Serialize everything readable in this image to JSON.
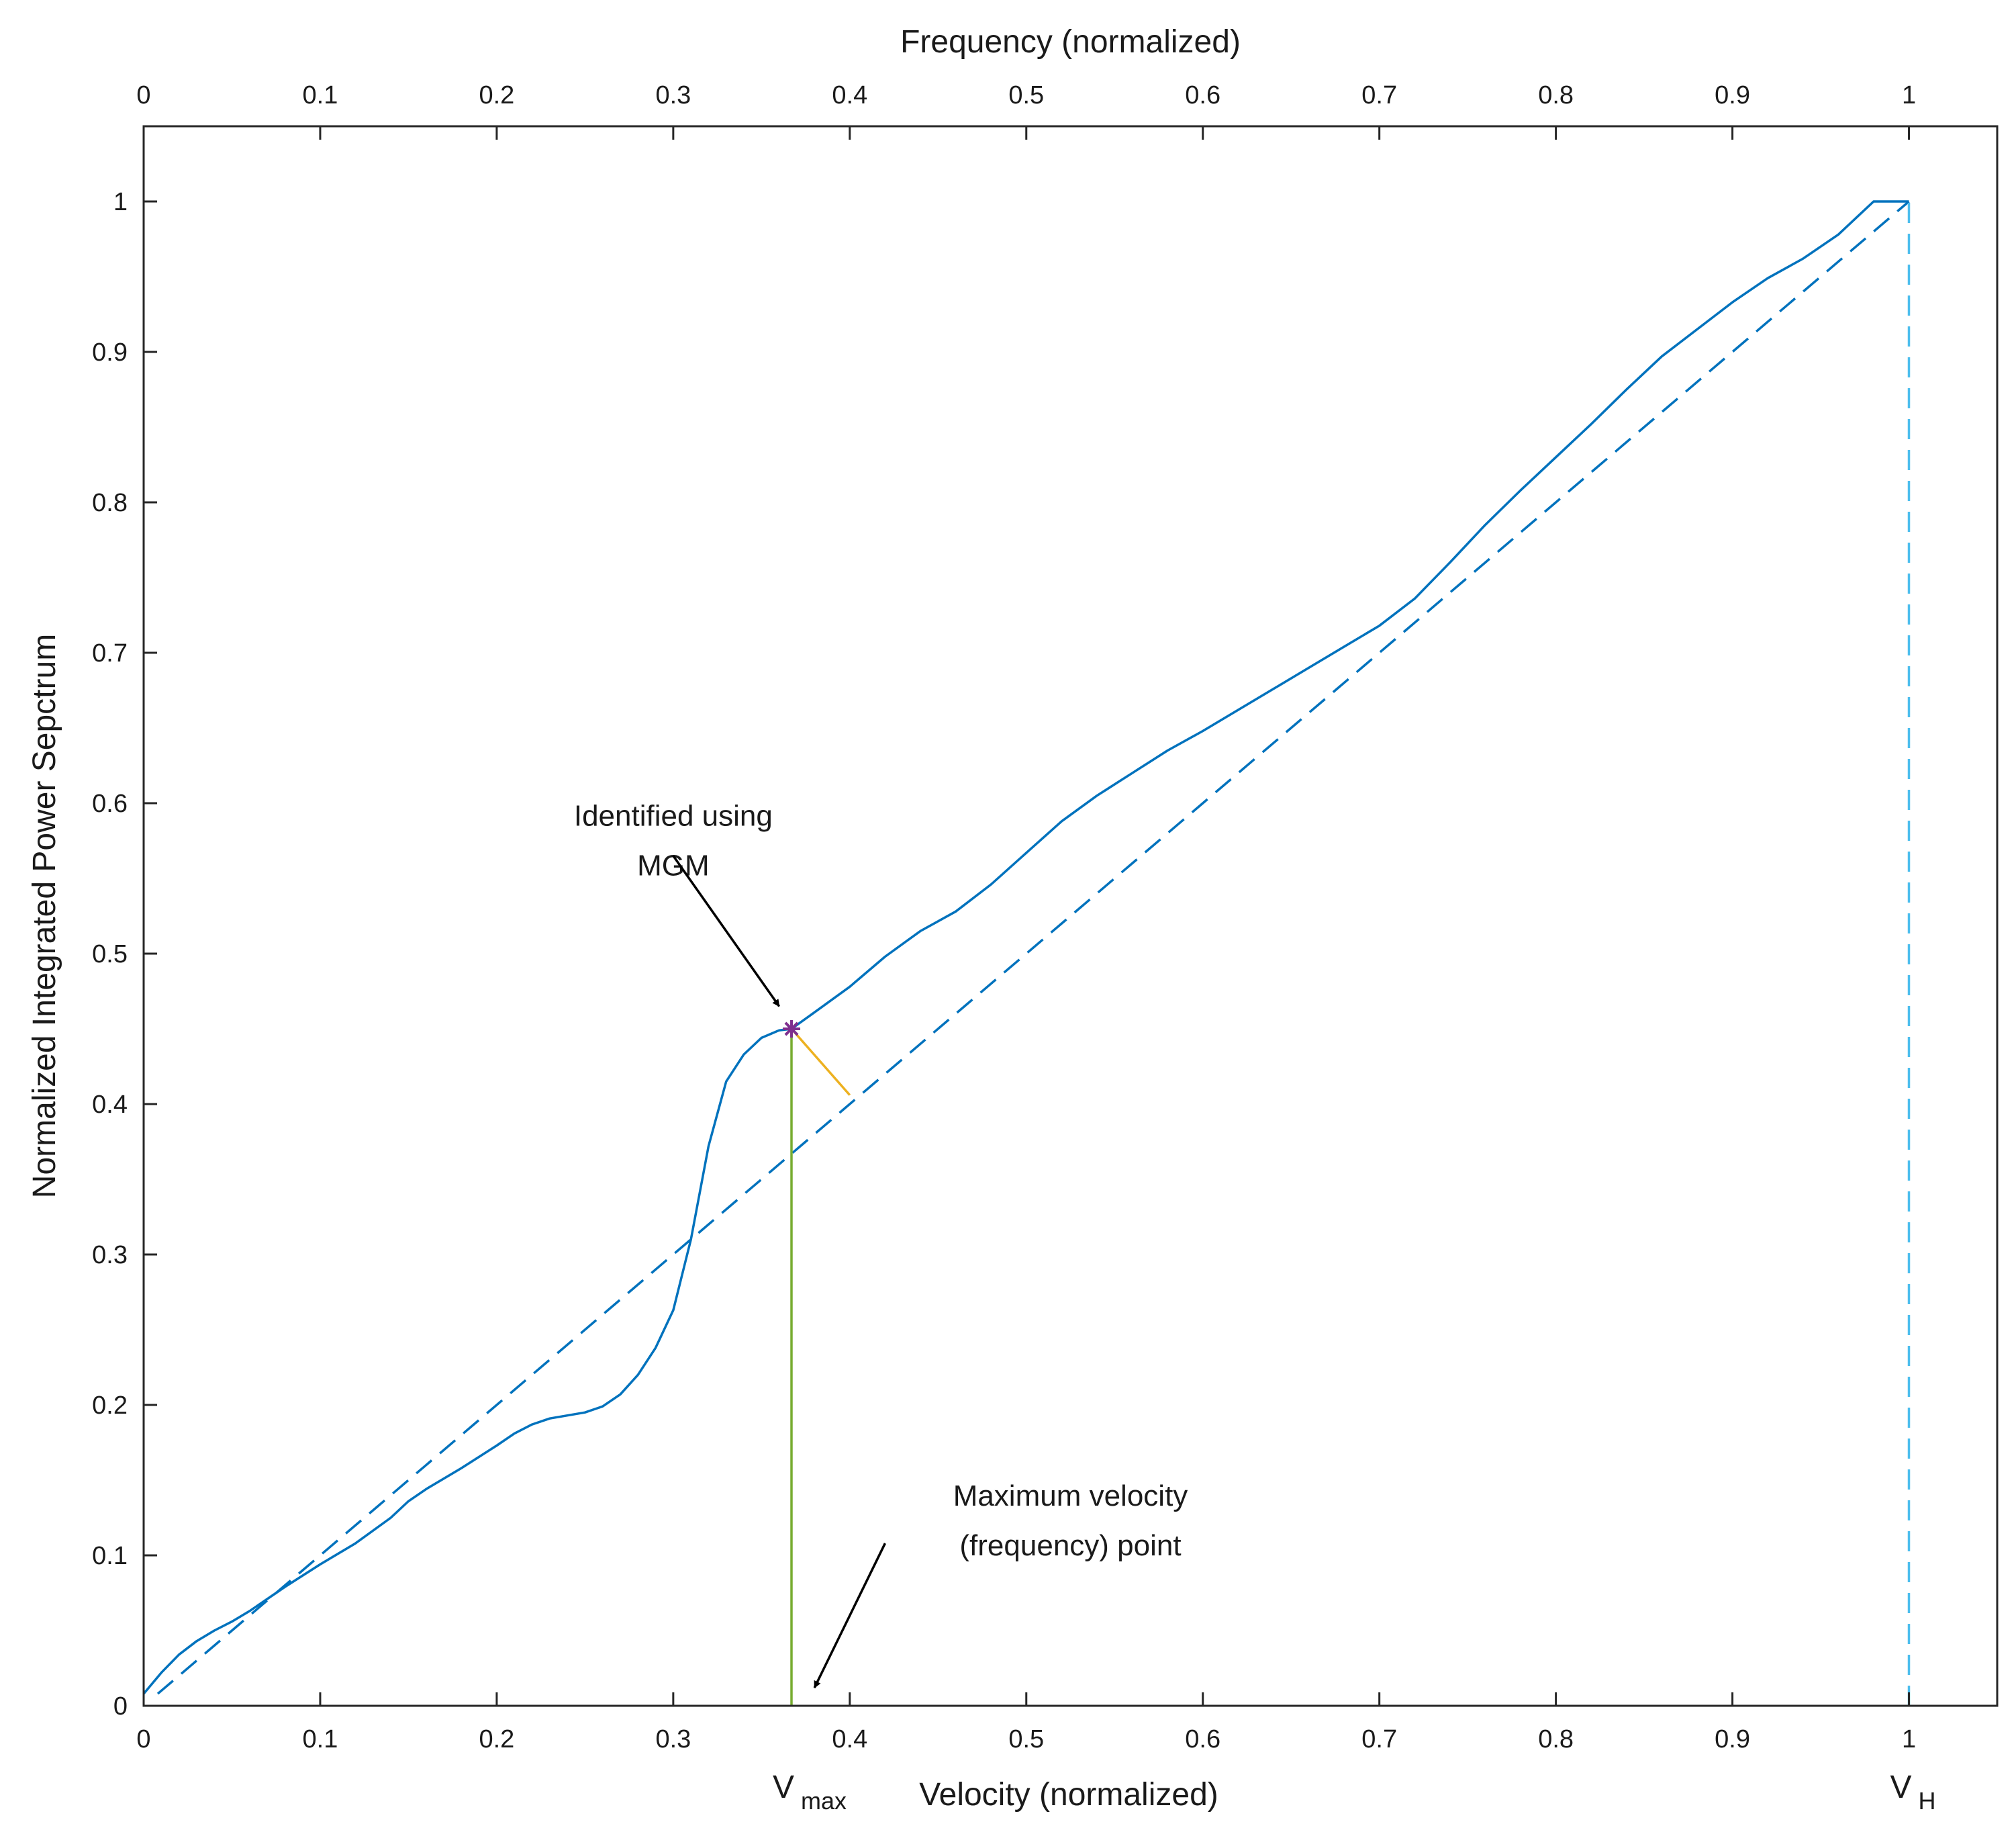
{
  "chart_data": {
    "type": "line",
    "xlabel": "Velocity (normalized)",
    "x2label": "Frequency (normalized)",
    "ylabel": "Normalized Integrated Power Sepctrum",
    "xlim": [
      0,
      1.05
    ],
    "ylim": [
      0,
      1.05
    ],
    "xticks": [
      0,
      0.1,
      0.2,
      0.3,
      0.4,
      0.5,
      0.6,
      0.7,
      0.8,
      0.9,
      1
    ],
    "xtick_labels": [
      "0",
      "0.1",
      "0.2",
      "0.3",
      "0.4",
      "0.5",
      "0.6",
      "0.7",
      "0.8",
      "0.9",
      "1"
    ],
    "yticks": [
      0,
      0.1,
      0.2,
      0.3,
      0.4,
      0.5,
      0.6,
      0.7,
      0.8,
      0.9,
      1
    ],
    "ytick_labels": [
      "0",
      "0.1",
      "0.2",
      "0.3",
      "0.4",
      "0.5",
      "0.6",
      "0.7",
      "0.8",
      "0.9",
      "1"
    ],
    "grid": false,
    "series": [
      {
        "style": "solid",
        "color": "#0072bd",
        "x": [
          0,
          0.01,
          0.02,
          0.03,
          0.04,
          0.05,
          0.06,
          0.08,
          0.1,
          0.12,
          0.14,
          0.15,
          0.16,
          0.18,
          0.2,
          0.21,
          0.22,
          0.23,
          0.24,
          0.25,
          0.26,
          0.27,
          0.28,
          0.29,
          0.3,
          0.31,
          0.32,
          0.33,
          0.34,
          0.35,
          0.36,
          0.367,
          0.38,
          0.4,
          0.42,
          0.44,
          0.46,
          0.48,
          0.5,
          0.52,
          0.54,
          0.56,
          0.58,
          0.6,
          0.62,
          0.64,
          0.66,
          0.68,
          0.7,
          0.72,
          0.74,
          0.76,
          0.78,
          0.8,
          0.82,
          0.84,
          0.86,
          0.88,
          0.9,
          0.92,
          0.94,
          0.96,
          0.98,
          1
        ],
        "y": [
          0.008,
          0.022,
          0.034,
          0.043,
          0.05,
          0.056,
          0.063,
          0.079,
          0.094,
          0.108,
          0.125,
          0.136,
          0.144,
          0.158,
          0.173,
          0.181,
          0.187,
          0.191,
          0.193,
          0.195,
          0.199,
          0.207,
          0.22,
          0.238,
          0.263,
          0.31,
          0.372,
          0.415,
          0.433,
          0.444,
          0.449,
          0.45,
          0.461,
          0.478,
          0.498,
          0.515,
          0.528,
          0.546,
          0.567,
          0.588,
          0.605,
          0.62,
          0.635,
          0.648,
          0.662,
          0.676,
          0.69,
          0.704,
          0.718,
          0.736,
          0.76,
          0.785,
          0.808,
          0.83,
          0.852,
          0.875,
          0.897,
          0.915,
          0.933,
          0.949,
          0.962,
          0.978,
          1.0,
          1.0
        ]
      },
      {
        "style": "dashed",
        "color": "#0072bd",
        "x": [
          0.008,
          1
        ],
        "y": [
          0.008,
          1.0
        ]
      },
      {
        "style": "dashed",
        "color": "#4dbeee",
        "x": [
          1,
          1
        ],
        "y": [
          0,
          1.0
        ]
      },
      {
        "style": "solid",
        "color": "#77ac30",
        "x": [
          0.367,
          0.367
        ],
        "y": [
          0,
          0.45
        ]
      },
      {
        "style": "solid",
        "color": "#edb120",
        "x": [
          0.367,
          0.4
        ],
        "y": [
          0.45,
          0.406
        ]
      }
    ],
    "marker": {
      "symbol": "*",
      "color": "#7e2f8e",
      "x": 0.367,
      "y": 0.45
    },
    "annotations": [
      {
        "lines": [
          "Identified using",
          "MGM"
        ],
        "text_at": [
          0.3,
          0.585
        ],
        "arrow_from": [
          0.3,
          0.565
        ],
        "arrow_to": [
          0.36,
          0.465
        ]
      },
      {
        "lines": [
          "Maximum velocity",
          "(frequency) point"
        ],
        "text_at": [
          0.525,
          0.133
        ],
        "arrow_from": [
          0.42,
          0.108
        ],
        "arrow_to": [
          0.38,
          0.012
        ]
      }
    ],
    "v_labels": [
      {
        "main": "V",
        "sub": "max",
        "x": 0.367
      },
      {
        "main": "V",
        "sub": "H",
        "x": 1.0
      }
    ]
  }
}
